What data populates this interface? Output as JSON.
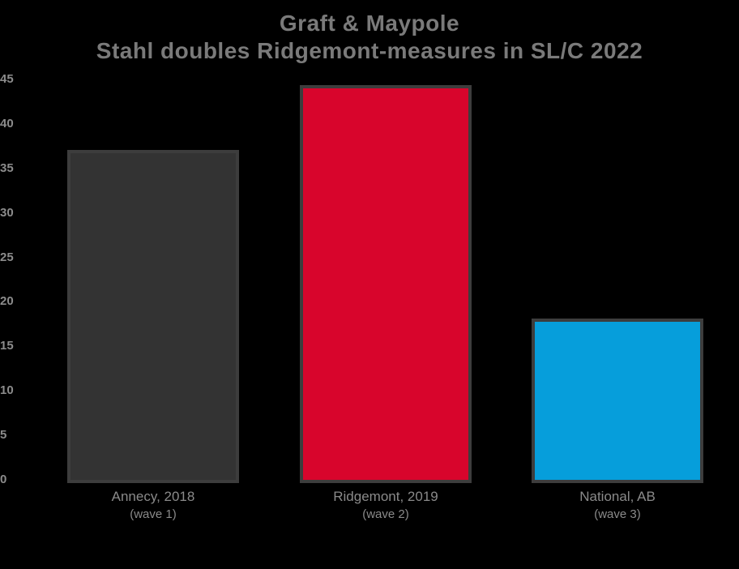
{
  "title": {
    "line1": "Graft & Maypole",
    "line2": "Stahl doubles Ridgemont-measures in SL/C 2022"
  },
  "colors": {
    "background": "#000000",
    "title_text": "#7a7a7a",
    "tick_text": "#8c8c8c",
    "label_text": "#8a8a8a",
    "bar_border": "#3d3d3d",
    "bar_dark": "#333333",
    "bar_red": "#d8052c",
    "bar_blue": "#069edb"
  },
  "chart_data": {
    "type": "bar",
    "title": "Graft & Maypole — Stahl doubles Ridgemont-measures in SL/C 2022",
    "categories": [
      "Annecy, 2018",
      "Ridgemont, 2019",
      "National, AB"
    ],
    "category_sublabels": [
      "(wave 1)",
      "(wave 2)",
      "(wave 3)"
    ],
    "values": [
      37,
      44.3,
      18
    ],
    "bar_colors": [
      "#333333",
      "#d8052c",
      "#069edb"
    ],
    "bar_border_color": "#3d3d3d",
    "xlabel": "",
    "ylabel": "",
    "ylim": [
      0,
      45
    ],
    "yticks": [
      0,
      5,
      10,
      15,
      20,
      25,
      30,
      35,
      40,
      45
    ],
    "grid": false,
    "legend": null,
    "background": "black"
  }
}
